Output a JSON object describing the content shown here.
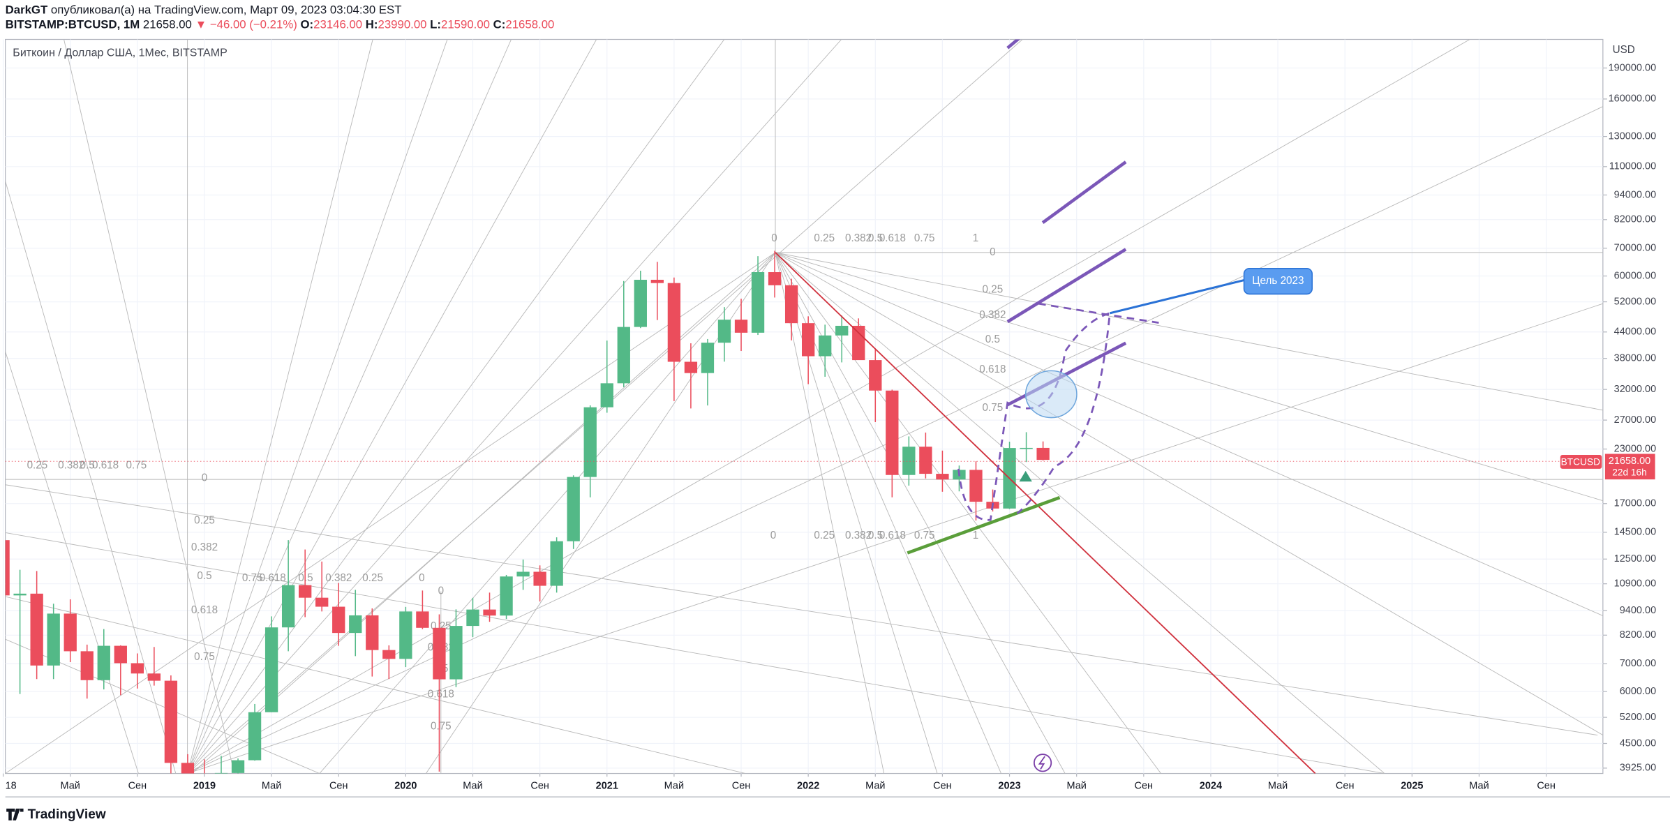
{
  "header": {
    "author": "DarkGT",
    "published": "опубликовал(а) на TradingView.com, Март 09, 2023 03:04:30 EST",
    "symbol": "BITSTAMP:BTCUSD, 1M",
    "last": "21658.00",
    "change": "▼ −46.00 (−0.21%)",
    "o_label": "O:",
    "o": "23146.00",
    "h_label": "H:",
    "h": "23990.00",
    "l_label": "L:",
    "l": "21590.00",
    "c_label": "C:",
    "c": "21658.00"
  },
  "legend": "Биткоин / Доллар США, 1Мес, BITSTAMP",
  "currency": "USD",
  "price_tag": {
    "symbol": "BTCUSD",
    "price": "21658.00",
    "countdown": "22d 16h"
  },
  "annotations": {
    "target": "Цель 2023"
  },
  "fan_levels": [
    "0",
    "0.25",
    "0.382",
    "0.5",
    "0.618",
    "0.75",
    "1"
  ],
  "footer": "TradingView",
  "chart_data": {
    "type": "candlestick",
    "log_scale": true,
    "grid": true,
    "up_color": "#53b987",
    "down_color": "#eb4d5c",
    "x": [
      "2018-01",
      "2018-02",
      "2018-03",
      "2018-04",
      "2018-05",
      "2018-06",
      "2018-07",
      "2018-08",
      "2018-09",
      "2018-10",
      "2018-11",
      "2018-12",
      "2019-01",
      "2019-02",
      "2019-03",
      "2019-04",
      "2019-05",
      "2019-06",
      "2019-07",
      "2019-08",
      "2019-09",
      "2019-10",
      "2019-11",
      "2019-12",
      "2020-01",
      "2020-02",
      "2020-03",
      "2020-04",
      "2020-05",
      "2020-06",
      "2020-07",
      "2020-08",
      "2020-09",
      "2020-10",
      "2020-11",
      "2020-12",
      "2021-01",
      "2021-02",
      "2021-03",
      "2021-04",
      "2021-05",
      "2021-06",
      "2021-07",
      "2021-08",
      "2021-09",
      "2021-10",
      "2021-11",
      "2021-12",
      "2022-01",
      "2022-02",
      "2022-03",
      "2022-04",
      "2022-05",
      "2022-06",
      "2022-07",
      "2022-08",
      "2022-09",
      "2022-10",
      "2022-11",
      "2022-12",
      "2023-01",
      "2023-02",
      "2023-03"
    ],
    "open": [
      13880,
      10220,
      10320,
      6930,
      9240,
      7500,
      6390,
      7730,
      7020,
      6630,
      6370,
      4040,
      3740,
      3440,
      3820,
      4100,
      5350,
      8560,
      10820,
      10090,
      9600,
      8300,
      9150,
      7550,
      7190,
      9350,
      8540,
      6420,
      8630,
      9450,
      9140,
      11350,
      11650,
      10780,
      13800,
      19700,
      28990,
      33110,
      45240,
      58760,
      57700,
      37300,
      35040,
      41460,
      47100,
      43820,
      61300,
      57000,
      46200,
      38470,
      43160,
      45530,
      37650,
      31800,
      19920,
      23300,
      20050,
      19430,
      20490,
      17170,
      16540,
      23130,
      23146
    ],
    "high": [
      17250,
      11780,
      11700,
      9760,
      10000,
      7780,
      8480,
      7750,
      7410,
      7680,
      6560,
      4240,
      4120,
      4200,
      4140,
      5600,
      9100,
      13880,
      13180,
      12330,
      10950,
      10540,
      9510,
      7750,
      9590,
      10500,
      9200,
      9460,
      10080,
      10380,
      11450,
      12470,
      12070,
      14100,
      19880,
      29300,
      41950,
      58350,
      61780,
      64900,
      59500,
      41330,
      42310,
      50500,
      52920,
      66970,
      69000,
      59100,
      47990,
      45820,
      48190,
      47440,
      40000,
      31960,
      24670,
      25200,
      22800,
      20990,
      21480,
      18380,
      23960,
      25250,
      23990
    ],
    "low": [
      9200,
      5920,
      6430,
      6430,
      7060,
      5770,
      6070,
      5880,
      6100,
      6200,
      3650,
      3120,
      3350,
      3380,
      3670,
      4090,
      5350,
      7500,
      9060,
      9350,
      7730,
      7300,
      6520,
      6430,
      6870,
      8480,
      3850,
      6150,
      8110,
      8830,
      8970,
      10540,
      9880,
      10380,
      13220,
      17600,
      28130,
      32400,
      44960,
      47000,
      30000,
      28800,
      29280,
      37330,
      39600,
      43280,
      53250,
      42000,
      32950,
      34330,
      37170,
      37700,
      26700,
      17600,
      18780,
      19540,
      18150,
      18190,
      15480,
      16270,
      16500,
      21400,
      21590
    ],
    "close": [
      10220,
      10320,
      6930,
      9240,
      7500,
      6390,
      7730,
      7020,
      6630,
      6370,
      4040,
      3740,
      3440,
      3820,
      4100,
      5350,
      8560,
      10820,
      10090,
      9600,
      8300,
      9150,
      7550,
      7190,
      9350,
      8540,
      6420,
      8630,
      9450,
      9140,
      11350,
      11650,
      10780,
      13800,
      19700,
      28990,
      33110,
      45240,
      58760,
      57700,
      37300,
      35040,
      41460,
      47100,
      43820,
      61300,
      57000,
      46200,
      38470,
      43160,
      45530,
      37650,
      31800,
      19920,
      23300,
      20050,
      19430,
      20490,
      17170,
      16540,
      23130,
      23146,
      21658
    ],
    "xlim": [
      "2018-01",
      "2025-12"
    ],
    "ylim": [
      3810,
      222600
    ],
    "xticks": [
      {
        "value": "2018-01",
        "label": "18"
      },
      {
        "value": "2018-05",
        "label": "Май"
      },
      {
        "value": "2018-09",
        "label": "Сен"
      },
      {
        "value": "2019-01",
        "label": "2019"
      },
      {
        "value": "2019-05",
        "label": "Май"
      },
      {
        "value": "2019-09",
        "label": "Сен"
      },
      {
        "value": "2020-01",
        "label": "2020"
      },
      {
        "value": "2020-05",
        "label": "Май"
      },
      {
        "value": "2020-09",
        "label": "Сен"
      },
      {
        "value": "2021-01",
        "label": "2021"
      },
      {
        "value": "2021-05",
        "label": "Май"
      },
      {
        "value": "2021-09",
        "label": "Сен"
      },
      {
        "value": "2022-01",
        "label": "2022"
      },
      {
        "value": "2022-05",
        "label": "Май"
      },
      {
        "value": "2022-09",
        "label": "Сен"
      },
      {
        "value": "2023-01",
        "label": "2023"
      },
      {
        "value": "2023-05",
        "label": "Май"
      },
      {
        "value": "2023-09",
        "label": "Сен"
      },
      {
        "value": "2024-01",
        "label": "2024"
      },
      {
        "value": "2024-05",
        "label": "Май"
      },
      {
        "value": "2024-09",
        "label": "Сен"
      },
      {
        "value": "2025-01",
        "label": "2025"
      },
      {
        "value": "2025-05",
        "label": "Май"
      },
      {
        "value": "2025-09",
        "label": "Сен"
      }
    ],
    "yticks": [
      {
        "value": 190000,
        "label": "190000.00"
      },
      {
        "value": 160000,
        "label": "160000.00"
      },
      {
        "value": 130000,
        "label": "130000.00"
      },
      {
        "value": 110000,
        "label": "110000.00"
      },
      {
        "value": 94000,
        "label": "94000.00"
      },
      {
        "value": 82000,
        "label": "82000.00"
      },
      {
        "value": 70000,
        "label": "70000.00"
      },
      {
        "value": 60000,
        "label": "60000.00"
      },
      {
        "value": 52000,
        "label": "52000.00"
      },
      {
        "value": 44000,
        "label": "44000.00"
      },
      {
        "value": 38000,
        "label": "38000.00"
      },
      {
        "value": 32000,
        "label": "32000.00"
      },
      {
        "value": 27000,
        "label": "27000.00"
      },
      {
        "value": 23000,
        "label": "23000.00"
      },
      {
        "value": 17000,
        "label": "17000.00"
      },
      {
        "value": 14500,
        "label": "14500.00"
      },
      {
        "value": 12500,
        "label": "12500.00"
      },
      {
        "value": 10900,
        "label": "10900.00"
      },
      {
        "value": 9400,
        "label": "9400.00"
      },
      {
        "value": 8200,
        "label": "8200.00"
      },
      {
        "value": 7000,
        "label": "7000.00"
      },
      {
        "value": 6000,
        "label": "6000.00"
      },
      {
        "value": 5200,
        "label": "5200.00"
      },
      {
        "value": 4500,
        "label": "4500.00"
      },
      {
        "value": 3925,
        "label": "3925.00"
      }
    ]
  }
}
